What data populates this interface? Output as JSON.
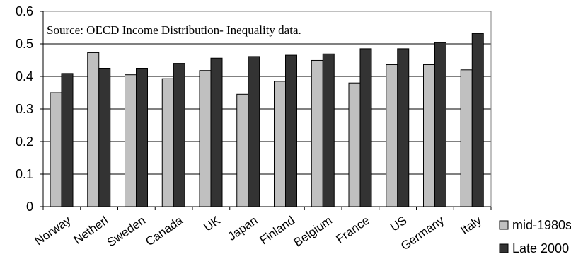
{
  "chart_data": {
    "type": "bar",
    "title": "",
    "xlabel": "",
    "ylabel": "",
    "annotation": "Source: OECD Income Distribution- Inequality data.",
    "categories": [
      "Norway",
      "Netherl",
      "Sweden",
      "Canada",
      "UK",
      "Japan",
      "Finland",
      "Belgium",
      "France",
      "US",
      "Germany",
      "Italy"
    ],
    "series": [
      {
        "name": "mid-1980s",
        "color": "#c0c0c0",
        "values": [
          0.35,
          0.473,
          0.405,
          0.393,
          0.418,
          0.345,
          0.385,
          0.449,
          0.38,
          0.436,
          0.436,
          0.42
        ]
      },
      {
        "name": "Late 2000",
        "color": "#333333",
        "values": [
          0.409,
          0.425,
          0.425,
          0.44,
          0.456,
          0.461,
          0.465,
          0.469,
          0.485,
          0.485,
          0.504,
          0.532
        ]
      }
    ],
    "ylim": [
      0,
      0.6
    ],
    "yticks": [
      "0",
      "0.1",
      "0.2",
      "0.3",
      "0.4",
      "0.5",
      "0.6"
    ],
    "grid": true,
    "legend_position": "bottom-right"
  }
}
